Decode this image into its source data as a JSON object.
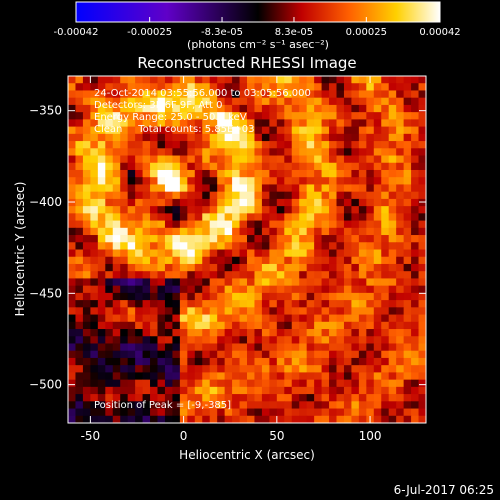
{
  "colorbar": {
    "tick_labels": [
      "-0.00042",
      "-0.00025",
      "-8.3e-05",
      "8.3e-05",
      "0.00025",
      "0.00042"
    ],
    "tick_values": [
      -0.00042,
      -0.00025,
      -8.3e-05,
      8.3e-05,
      0.00025,
      0.00042
    ],
    "range": [
      -0.00042,
      0.00042
    ],
    "units_label": "(photons cm⁻² s⁻¹ asec⁻²)",
    "colormap": [
      "#0000ff",
      "#6000c8",
      "#000000",
      "#c00000",
      "#ff6000",
      "#ffd000",
      "#ffffff"
    ]
  },
  "chart_data": {
    "type": "heatmap",
    "title": "Reconstructed RHESSI Image",
    "xlabel": "Heliocentric X (arcsec)",
    "ylabel": "Heliocentric Y (arcsec)",
    "xlim": [
      -62,
      130
    ],
    "ylim": [
      -521,
      -331
    ],
    "xticks": [
      -50,
      0,
      50,
      100
    ],
    "yticks": [
      -350,
      -400,
      -450,
      -500
    ],
    "annotations": {
      "time": "24-Oct-2014 03:55:56.000 to 03:05:56.000",
      "detectors": "Detectors: 3F 6F 9F, Att 0",
      "energy": "Energy Range: 25.0 - 50.0 keV",
      "clean": "Clean     Total counts: 5.85E+03",
      "peak": "Position of Peak = [-9,-385]"
    },
    "peak_position": [
      -9,
      -385
    ]
  },
  "footer": {
    "date": "6-Jul-2017 06:25"
  }
}
